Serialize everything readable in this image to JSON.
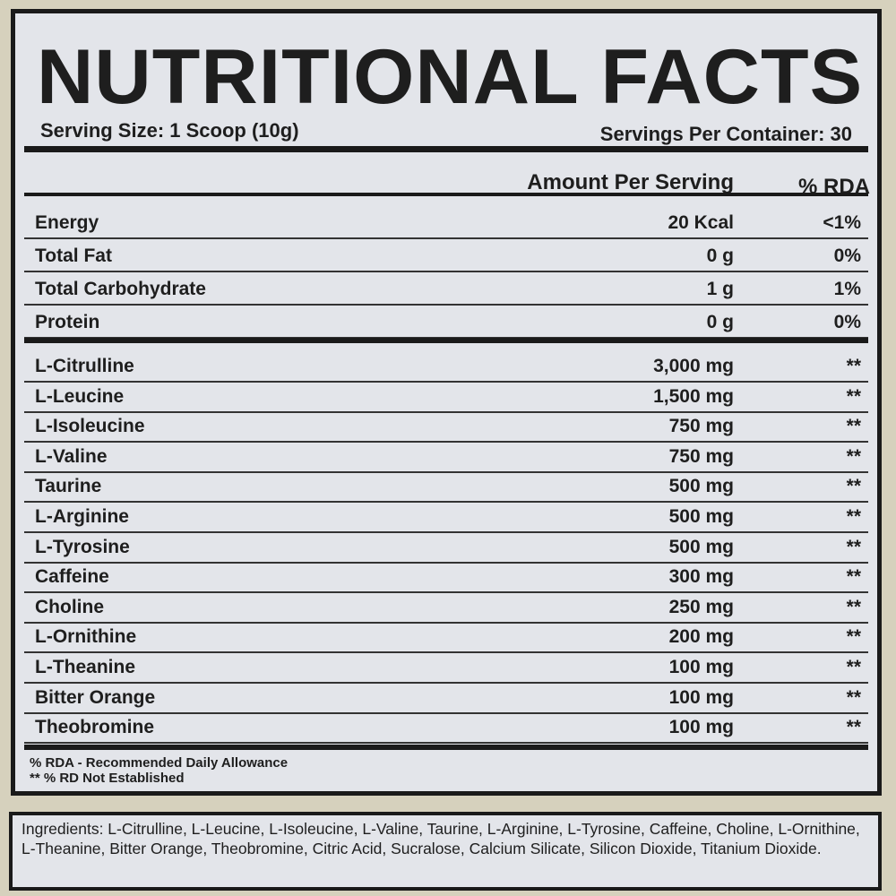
{
  "title": "NUTRITIONAL FACTS",
  "serving_size": "Serving Size: 1 Scoop (10g)",
  "servings_per_container": "Servings Per Container: 30",
  "header": {
    "amount": "Amount Per Serving",
    "rda": "% RDA"
  },
  "macros": [
    {
      "name": "Energy",
      "amount": "20 Kcal",
      "rda": "<1%"
    },
    {
      "name": "Total Fat",
      "amount": "0 g",
      "rda": "0%"
    },
    {
      "name": "Total Carbohydrate",
      "amount": "1 g",
      "rda": "1%"
    },
    {
      "name": "Protein",
      "amount": "0 g",
      "rda": "0%"
    }
  ],
  "ingredients_rows": [
    {
      "name": "L-Citrulline",
      "amount": "3,000 mg",
      "rda": "**"
    },
    {
      "name": "L-Leucine",
      "amount": "1,500 mg",
      "rda": "**"
    },
    {
      "name": "L-Isoleucine",
      "amount": "750 mg",
      "rda": "**"
    },
    {
      "name": "L-Valine",
      "amount": "750 mg",
      "rda": "**"
    },
    {
      "name": "Taurine",
      "amount": "500 mg",
      "rda": "**"
    },
    {
      "name": "L-Arginine",
      "amount": "500 mg",
      "rda": "**"
    },
    {
      "name": "L-Tyrosine",
      "amount": "500 mg",
      "rda": "**"
    },
    {
      "name": "Caffeine",
      "amount": "300 mg",
      "rda": "**"
    },
    {
      "name": "Choline",
      "amount": "250 mg",
      "rda": "**"
    },
    {
      "name": "L-Ornithine",
      "amount": "200 mg",
      "rda": "**"
    },
    {
      "name": "L-Theanine",
      "amount": "100 mg",
      "rda": "**"
    },
    {
      "name": "Bitter Orange",
      "amount": "100 mg",
      "rda": "**"
    },
    {
      "name": "Theobromine",
      "amount": "100 mg",
      "rda": "**"
    }
  ],
  "footnotes": [
    "% RDA - Recommended Daily Allowance",
    "** % RD Not Established"
  ],
  "ingredients": "Ingredients: L-Citrulline, L-Leucine, L-Isoleucine, L-Valine, Taurine, L-Arginine, L-Tyrosine, Caffeine, Choline, L-Ornithine, L-Theanine, Bitter Orange, Theobromine, Citric Acid, Sucralose, Calcium Silicate, Silicon Dioxide, Titanium Dioxide."
}
